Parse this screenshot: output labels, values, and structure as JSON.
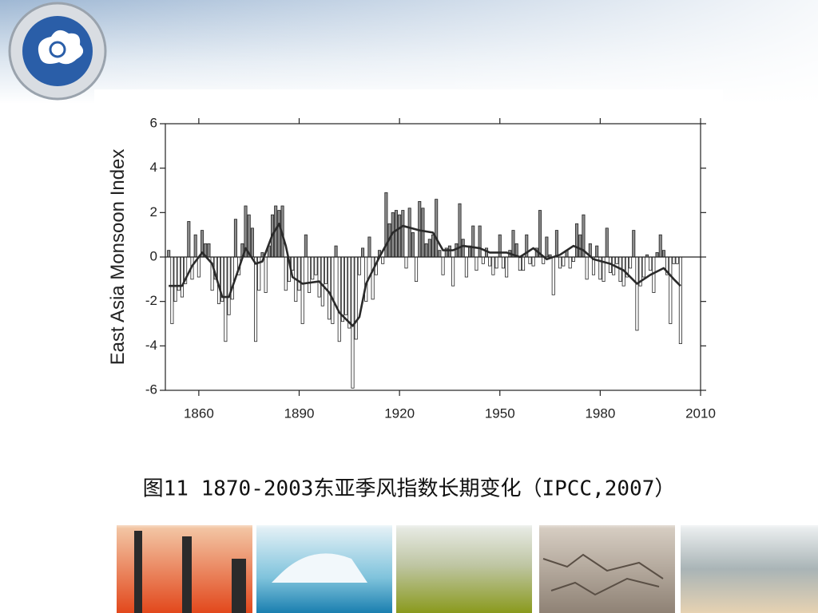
{
  "chart_data": {
    "type": "bar",
    "ylabel": "East Asia Monsoon Index",
    "caption": "图11 1870-2003东亚季风指数长期变化（IPCC,2007）",
    "xlim": [
      1850,
      2010
    ],
    "xticks": [
      1860,
      1890,
      1920,
      1950,
      1980,
      2010
    ],
    "ylim": [
      -6,
      6
    ],
    "yticks": [
      -6,
      -4,
      -2,
      0,
      2,
      4,
      6
    ],
    "start_year": 1851,
    "pos_color": "#8c8c8c",
    "neg_color": "#ffffff",
    "line_color": "#2a2a2a",
    "values": [
      0.3,
      -3.0,
      -2.0,
      -1.5,
      -1.8,
      -1.2,
      1.6,
      -1.0,
      1.0,
      -0.9,
      1.2,
      0.6,
      0.6,
      -1.5,
      -1.0,
      -2.1,
      -2.0,
      -3.8,
      -2.6,
      -1.9,
      1.7,
      -0.8,
      0.6,
      2.3,
      1.9,
      1.3,
      -3.8,
      -1.5,
      0.2,
      -1.6,
      0.5,
      1.9,
      2.3,
      2.1,
      2.3,
      -1.5,
      -1.1,
      -0.6,
      -2.0,
      -1.5,
      -3.0,
      1.0,
      -1.6,
      -1.0,
      -0.8,
      -1.8,
      -2.2,
      -1.2,
      -2.8,
      -3.0,
      0.5,
      -3.8,
      -2.9,
      -2.6,
      -3.2,
      -5.9,
      -3.7,
      -0.8,
      0.4,
      -2.0,
      0.9,
      -1.9,
      -0.8,
      0.3,
      -0.3,
      2.9,
      1.5,
      2.0,
      2.1,
      1.9,
      2.1,
      -0.5,
      2.2,
      1.1,
      -1.1,
      2.5,
      2.2,
      0.6,
      0.8,
      1.0,
      2.6,
      0.3,
      -0.8,
      0.4,
      0.5,
      -1.3,
      0.6,
      2.4,
      0.8,
      -0.9,
      0.5,
      1.4,
      -0.6,
      1.4,
      -0.3,
      0.4,
      -0.4,
      -0.8,
      -0.5,
      1.0,
      -0.5,
      -0.9,
      0.3,
      1.2,
      0.6,
      -0.6,
      -0.6,
      1.0,
      -0.3,
      -0.4,
      0.4,
      2.1,
      -0.3,
      0.9,
      0.1,
      -1.7,
      1.2,
      -0.5,
      -0.4,
      0.3,
      -0.5,
      -0.2,
      1.5,
      1.0,
      1.9,
      -1.0,
      0.6,
      -0.8,
      0.5,
      -1.0,
      -1.1,
      1.3,
      -0.7,
      -0.8,
      -0.3,
      -1.1,
      -1.3,
      -0.9,
      -0.5,
      1.2,
      -3.3,
      -1.3,
      -0.9,
      0.1,
      -0.6,
      -1.6,
      0.2,
      1.0,
      0.3,
      -0.8,
      -3.0,
      -0.3,
      -0.3,
      -3.9
    ],
    "smooth_x": [
      1851,
      1855,
      1858,
      1861,
      1864,
      1867,
      1869,
      1872,
      1874,
      1877,
      1879,
      1882,
      1884,
      1886,
      1888,
      1891,
      1896,
      1899,
      1902,
      1906,
      1908,
      1910,
      1914,
      1918,
      1921,
      1926,
      1930,
      1933,
      1936,
      1939,
      1944,
      1947,
      1952,
      1956,
      1960,
      1964,
      1968,
      1972,
      1975,
      1978,
      1983,
      1987,
      1991,
      1995,
      1999,
      2002,
      2004
    ],
    "smooth_values": [
      -1.3,
      -1.3,
      -0.4,
      0.2,
      -0.3,
      -1.8,
      -1.8,
      -0.5,
      0.4,
      -0.3,
      -0.2,
      1.0,
      1.5,
      0.5,
      -0.9,
      -1.2,
      -1.1,
      -1.6,
      -2.5,
      -3.1,
      -2.7,
      -1.2,
      0.0,
      1.1,
      1.4,
      1.2,
      1.1,
      0.3,
      0.3,
      0.5,
      0.4,
      0.2,
      0.2,
      0.0,
      0.4,
      -0.1,
      0.1,
      0.5,
      0.3,
      -0.1,
      -0.3,
      -0.6,
      -1.2,
      -0.8,
      -0.5,
      -1.0,
      -1.3
    ]
  }
}
